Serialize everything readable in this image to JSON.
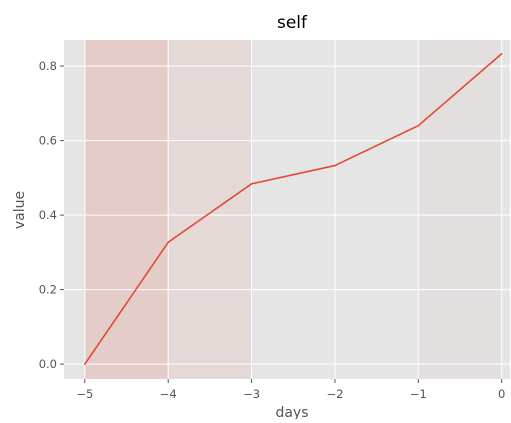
{
  "chart_data": {
    "type": "line",
    "title": "self",
    "xlabel": "days",
    "ylabel": "value",
    "xlim": [
      -5.25,
      0.1
    ],
    "ylim": [
      -0.04,
      0.87
    ],
    "x_ticks": [
      -5,
      -4,
      -3,
      -2,
      -1,
      0
    ],
    "y_ticks": [
      0.0,
      0.2,
      0.4,
      0.6,
      0.8
    ],
    "x_tick_labels": [
      "−5",
      "−4",
      "−3",
      "−2",
      "−1",
      "0"
    ],
    "y_tick_labels": [
      "0.0",
      "0.2",
      "0.4",
      "0.6",
      "0.8"
    ],
    "grid": true,
    "style": "ggplot",
    "series": [
      {
        "x": [
          -5,
          -4,
          -3,
          -2,
          -1,
          0
        ],
        "values": [
          0.0,
          0.327,
          0.484,
          0.533,
          0.64,
          0.833
        ],
        "color": "#e24a33"
      }
    ],
    "shaded_bands": [
      {
        "x_range": [
          -5,
          -4
        ],
        "color": "#e24a33",
        "opacity": 0.16
      },
      {
        "x_range": [
          -4,
          -3
        ],
        "color": "#e24a33",
        "opacity": 0.08
      },
      {
        "x_range": [
          -1,
          0
        ],
        "color": "#e24a33",
        "opacity": 0.03
      }
    ],
    "colors": {
      "plot_background": "#e5e5e5",
      "grid": "#ffffff",
      "text": "#555555",
      "title": "#000000"
    }
  }
}
